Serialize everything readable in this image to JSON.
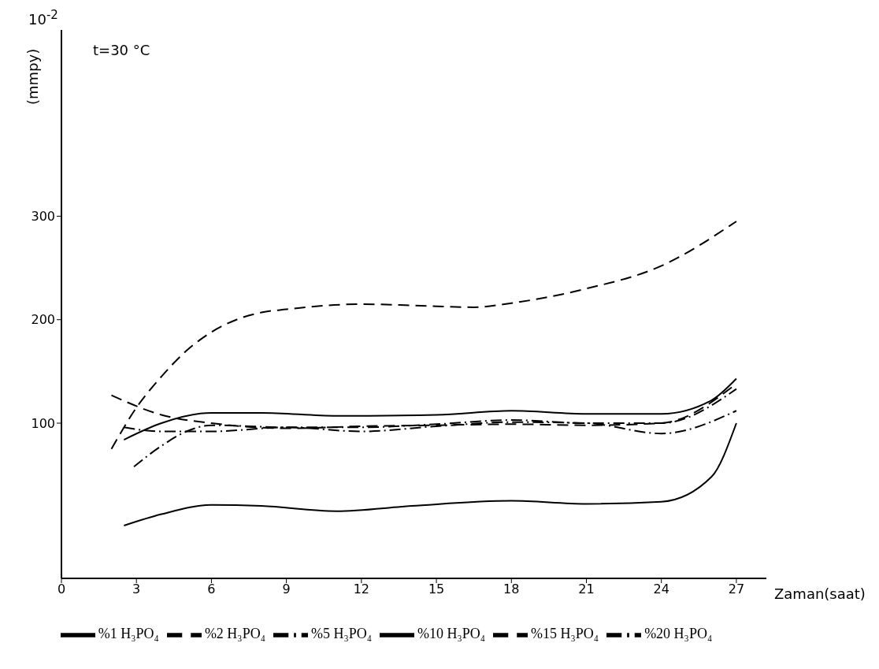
{
  "chart_data": {
    "type": "line",
    "xlabel": "Zaman(saat)",
    "ylabel": "(mmpy)",
    "annotations": [
      "t=30 °C",
      "10$^{-2}$"
    ],
    "xlim": [
      0,
      28.2
    ],
    "xticks": [
      0,
      3,
      6,
      9,
      12,
      15,
      18,
      21,
      24,
      27
    ],
    "ylim": [
      -50,
      480
    ],
    "yticks": [
      100,
      200,
      300
    ],
    "legend": "bottom",
    "series": [
      {
        "name": "%1 H₃PO₄",
        "color": "#000000",
        "line_style": "solid",
        "x": [
          2.5,
          4,
          6,
          8,
          11,
          14,
          18,
          21,
          24,
          26,
          27
        ],
        "values": [
          1,
          12,
          21,
          20,
          15,
          20,
          25,
          22,
          24,
          48,
          100
        ]
      },
      {
        "name": "%2 H₃PO₄",
        "color": "#000000",
        "line_style": "dashed",
        "x": [
          2,
          3,
          4,
          5,
          6,
          7,
          8,
          9,
          12,
          15,
          16.5,
          18,
          21,
          24,
          27
        ],
        "values": [
          75,
          115,
          145,
          170,
          188,
          200,
          207,
          210,
          215,
          213,
          212,
          216,
          230,
          252,
          295
        ]
      },
      {
        "name": "%5 H₃PO₄",
        "color": "#000000",
        "line_style": "dashdot",
        "x": [
          2.9,
          4,
          5,
          6,
          9,
          12,
          15,
          18,
          21,
          24,
          27
        ],
        "values": [
          58,
          78,
          92,
          98,
          96,
          96,
          99,
          103,
          100,
          100,
          133
        ]
      },
      {
        "name": "%10 H₃PO₄",
        "color": "#000000",
        "line_style": "solid",
        "x": [
          2.5,
          4,
          6,
          8,
          11,
          15,
          18,
          21,
          24,
          26,
          27
        ],
        "values": [
          84,
          100,
          110,
          110,
          107,
          108,
          112,
          109,
          109,
          122,
          143
        ]
      },
      {
        "name": "%15 H₃PO₄",
        "color": "#000000",
        "line_style": "dashed",
        "x": [
          2,
          4,
          6,
          9,
          12,
          15,
          18,
          21,
          24,
          27
        ],
        "values": [
          127,
          108,
          100,
          95,
          97,
          98,
          99,
          98,
          100,
          138
        ]
      },
      {
        "name": "%20 H₃PO₄",
        "color": "#000000",
        "line_style": "dashdot",
        "x": [
          2.5,
          4,
          6,
          9,
          12,
          15,
          18,
          21,
          24,
          27
        ],
        "values": [
          96,
          92,
          92,
          96,
          92,
          97,
          101,
          100,
          90,
          112
        ]
      }
    ]
  }
}
